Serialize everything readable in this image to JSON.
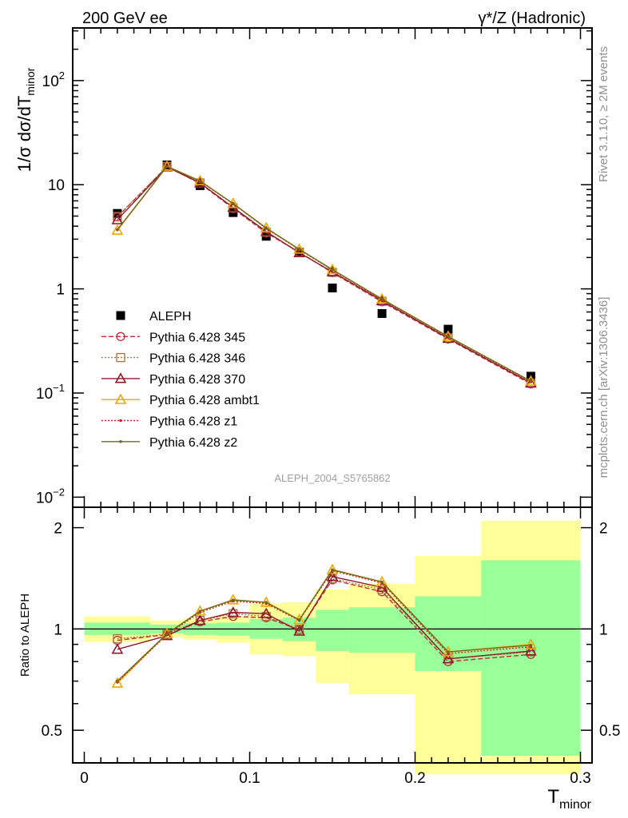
{
  "header": {
    "left_label": "200 GeV ee",
    "right_label": "γ*/Z (Hadronic)"
  },
  "side_labels": {
    "rivet": "Rivet 3.1.10, ≥ 2M events",
    "mcplots": "mcplots.cern.ch [arXiv:1306.3436]"
  },
  "chart_data": [
    {
      "type": "scatter",
      "panel": "main",
      "ylabel": "1/σ  dσ/dT",
      "ylabel_sub": "minor",
      "yscale": "log",
      "xlim": [
        -0.007,
        0.307
      ],
      "ylim": [
        0.008,
        320
      ],
      "yticks": [
        {
          "value": 100,
          "base": "10",
          "exp": "2"
        },
        {
          "value": 10,
          "base": "10",
          "exp": ""
        },
        {
          "value": 1,
          "base": "1",
          "exp": ""
        },
        {
          "value": 0.1,
          "base": "10",
          "exp": "−1"
        },
        {
          "value": 0.01,
          "base": "10",
          "exp": "−2"
        }
      ],
      "watermark": "ALEPH_2004_S5765862",
      "legend_position": "bottom-left",
      "series": [
        {
          "name": "ALEPH",
          "color": "#000000",
          "style": "data-square",
          "x": [
            0.02,
            0.05,
            0.07,
            0.09,
            0.11,
            0.13,
            0.15,
            0.18,
            0.22,
            0.27
          ],
          "y": [
            5.3,
            15.5,
            9.8,
            5.4,
            3.2,
            2.25,
            1.02,
            0.58,
            0.41,
            0.145
          ]
        },
        {
          "name": "Pythia 6.428 345",
          "color": "#c0293a",
          "style": "dashed-circle",
          "x": [
            0.02,
            0.05,
            0.07,
            0.09,
            0.11,
            0.13,
            0.15,
            0.18,
            0.22,
            0.27
          ],
          "y": [
            4.9,
            14.9,
            10.3,
            5.9,
            3.45,
            2.25,
            1.43,
            0.75,
            0.33,
            0.122
          ]
        },
        {
          "name": "Pythia 6.428 346",
          "color": "#a8743c",
          "style": "dotted-square",
          "x": [
            0.02,
            0.05,
            0.07,
            0.09,
            0.11,
            0.13,
            0.15,
            0.18,
            0.22,
            0.27
          ],
          "y": [
            4.95,
            15.0,
            10.4,
            6.0,
            3.5,
            2.25,
            1.44,
            0.76,
            0.335,
            0.124
          ]
        },
        {
          "name": "Pythia 6.428 370",
          "color": "#8b1a2b",
          "style": "solid-triangle",
          "x": [
            0.02,
            0.05,
            0.07,
            0.09,
            0.11,
            0.13,
            0.15,
            0.18,
            0.22,
            0.27
          ],
          "y": [
            4.6,
            14.8,
            10.4,
            6.05,
            3.55,
            2.22,
            1.46,
            0.77,
            0.335,
            0.125
          ]
        },
        {
          "name": "Pythia 6.428 ambt1",
          "color": "#f0a500",
          "style": "solid-triangle",
          "x": [
            0.02,
            0.05,
            0.07,
            0.09,
            0.11,
            0.13,
            0.15,
            0.18,
            0.22,
            0.27
          ],
          "y": [
            3.65,
            15.0,
            10.9,
            6.6,
            3.85,
            2.4,
            1.53,
            0.8,
            0.35,
            0.13
          ]
        },
        {
          "name": "Pythia 6.428 z1",
          "color": "#e02020",
          "style": "dotted-dot",
          "x": [
            0.02,
            0.05,
            0.07,
            0.09,
            0.11,
            0.13,
            0.15,
            0.18,
            0.22,
            0.27
          ],
          "y": [
            3.7,
            14.9,
            10.8,
            6.55,
            3.8,
            2.38,
            1.52,
            0.79,
            0.345,
            0.128
          ]
        },
        {
          "name": "Pythia 6.428 z2",
          "color": "#6b6b1a",
          "style": "solid-dot",
          "x": [
            0.02,
            0.05,
            0.07,
            0.09,
            0.11,
            0.13,
            0.15,
            0.18,
            0.22,
            0.27
          ],
          "y": [
            3.7,
            15.0,
            10.85,
            6.6,
            3.83,
            2.4,
            1.53,
            0.8,
            0.348,
            0.13
          ]
        }
      ]
    },
    {
      "type": "line",
      "panel": "ratio",
      "ylabel": "Ratio to ALEPH",
      "xlabel": "T",
      "xlabel_sub": "minor",
      "xlim": [
        -0.007,
        0.307
      ],
      "ylim": [
        0.4,
        2.3
      ],
      "yscale": "log",
      "xticks": [
        {
          "value": 0,
          "label": "0"
        },
        {
          "value": 0.1,
          "label": "0.1"
        },
        {
          "value": 0.2,
          "label": "0.2"
        },
        {
          "value": 0.3,
          "label": "0.3"
        }
      ],
      "yticks": [
        {
          "value": 0.5,
          "label": "0.5"
        },
        {
          "value": 1,
          "label": "1"
        },
        {
          "value": 2,
          "label": "2"
        }
      ],
      "bands": [
        {
          "x0": 0.0,
          "x1": 0.04,
          "inner": [
            0.96,
            1.045
          ],
          "outer": [
            0.915,
            1.09
          ]
        },
        {
          "x0": 0.04,
          "x1": 0.06,
          "inner": [
            0.97,
            1.03
          ],
          "outer": [
            0.945,
            1.06
          ]
        },
        {
          "x0": 0.06,
          "x1": 0.08,
          "inner": [
            0.96,
            1.04
          ],
          "outer": [
            0.93,
            1.075
          ]
        },
        {
          "x0": 0.08,
          "x1": 0.1,
          "inner": [
            0.955,
            1.045
          ],
          "outer": [
            0.91,
            1.09
          ]
        },
        {
          "x0": 0.1,
          "x1": 0.12,
          "inner": [
            0.935,
            1.07
          ],
          "outer": [
            0.84,
            1.19
          ]
        },
        {
          "x0": 0.12,
          "x1": 0.14,
          "inner": [
            0.92,
            1.08
          ],
          "outer": [
            0.83,
            1.2
          ]
        },
        {
          "x0": 0.14,
          "x1": 0.16,
          "inner": [
            0.86,
            1.14
          ],
          "outer": [
            0.69,
            1.31
          ]
        },
        {
          "x0": 0.16,
          "x1": 0.2,
          "inner": [
            0.85,
            1.16
          ],
          "outer": [
            0.64,
            1.36
          ]
        },
        {
          "x0": 0.2,
          "x1": 0.24,
          "inner": [
            0.75,
            1.25
          ],
          "outer": [
            0.37,
            1.65
          ]
        },
        {
          "x0": 0.24,
          "x1": 0.3,
          "inner": [
            0.42,
            1.6
          ],
          "outer": [
            0.37,
            2.1
          ]
        }
      ],
      "reference": 1,
      "series": [
        {
          "name": "Pythia 6.428 345",
          "color": "#c0293a",
          "style": "dashed-circle",
          "x": [
            0.02,
            0.05,
            0.07,
            0.09,
            0.11,
            0.13,
            0.15,
            0.18,
            0.22,
            0.27
          ],
          "y": [
            0.925,
            0.962,
            1.05,
            1.09,
            1.08,
            0.995,
            1.4,
            1.29,
            0.8,
            0.84
          ]
        },
        {
          "name": "Pythia 6.428 346",
          "color": "#a8743c",
          "style": "dotted-square",
          "x": [
            0.02,
            0.05,
            0.07,
            0.09,
            0.11,
            0.13,
            0.15,
            0.18,
            0.22,
            0.27
          ],
          "y": [
            0.935,
            0.965,
            1.06,
            1.11,
            1.09,
            0.998,
            1.41,
            1.31,
            0.815,
            0.855
          ]
        },
        {
          "name": "Pythia 6.428 370",
          "color": "#8b1a2b",
          "style": "solid-triangle",
          "x": [
            0.02,
            0.05,
            0.07,
            0.09,
            0.11,
            0.13,
            0.15,
            0.18,
            0.22,
            0.27
          ],
          "y": [
            0.87,
            0.955,
            1.06,
            1.12,
            1.11,
            0.985,
            1.43,
            1.33,
            0.815,
            0.86
          ]
        },
        {
          "name": "Pythia 6.428 ambt1",
          "color": "#f0a500",
          "style": "solid-triangle",
          "x": [
            0.02,
            0.05,
            0.07,
            0.09,
            0.11,
            0.13,
            0.15,
            0.18,
            0.22,
            0.27
          ],
          "y": [
            0.69,
            0.968,
            1.13,
            1.22,
            1.2,
            1.065,
            1.5,
            1.38,
            0.855,
            0.9
          ]
        },
        {
          "name": "Pythia 6.428 z1",
          "color": "#e02020",
          "style": "dotted-dot",
          "x": [
            0.02,
            0.05,
            0.07,
            0.09,
            0.11,
            0.13,
            0.15,
            0.18,
            0.22,
            0.27
          ],
          "y": [
            0.695,
            0.962,
            1.12,
            1.21,
            1.19,
            1.06,
            1.49,
            1.37,
            0.845,
            0.885
          ]
        },
        {
          "name": "Pythia 6.428 z2",
          "color": "#6b6b1a",
          "style": "solid-dot",
          "x": [
            0.02,
            0.05,
            0.07,
            0.09,
            0.11,
            0.13,
            0.15,
            0.18,
            0.22,
            0.27
          ],
          "y": [
            0.7,
            0.968,
            1.13,
            1.22,
            1.2,
            1.065,
            1.5,
            1.38,
            0.855,
            0.895
          ]
        }
      ]
    }
  ]
}
